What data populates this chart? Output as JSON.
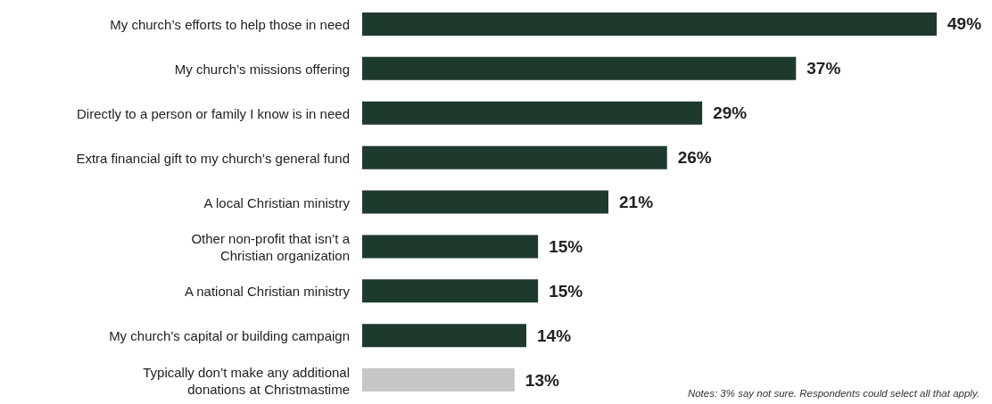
{
  "chart_data": {
    "type": "bar",
    "orientation": "horizontal",
    "categories": [
      "My church’s efforts to help those in need",
      "My church’s missions offering",
      "Directly to a person or family I know is in need",
      "Extra financial gift to my church’s general fund",
      "A local Christian ministry",
      "Other non-profit that isn’t a Christian organization",
      "A national Christian ministry",
      "My church’s capital or building campaign",
      "Typically don’t make any additional donations at Christmastime"
    ],
    "values": [
      49,
      37,
      29,
      26,
      21,
      15,
      15,
      14,
      13
    ],
    "value_labels": [
      "49%",
      "37%",
      "29%",
      "26%",
      "21%",
      "15%",
      "15%",
      "14%",
      "13%"
    ],
    "colors": [
      "#1e3a2d",
      "#1e3a2d",
      "#1e3a2d",
      "#1e3a2d",
      "#1e3a2d",
      "#1e3a2d",
      "#1e3a2d",
      "#1e3a2d",
      "#c6c6c6"
    ],
    "grid": false,
    "legend": false,
    "annotations": [
      "Notes: 3% say not sure. Respondents could select all that apply."
    ]
  }
}
